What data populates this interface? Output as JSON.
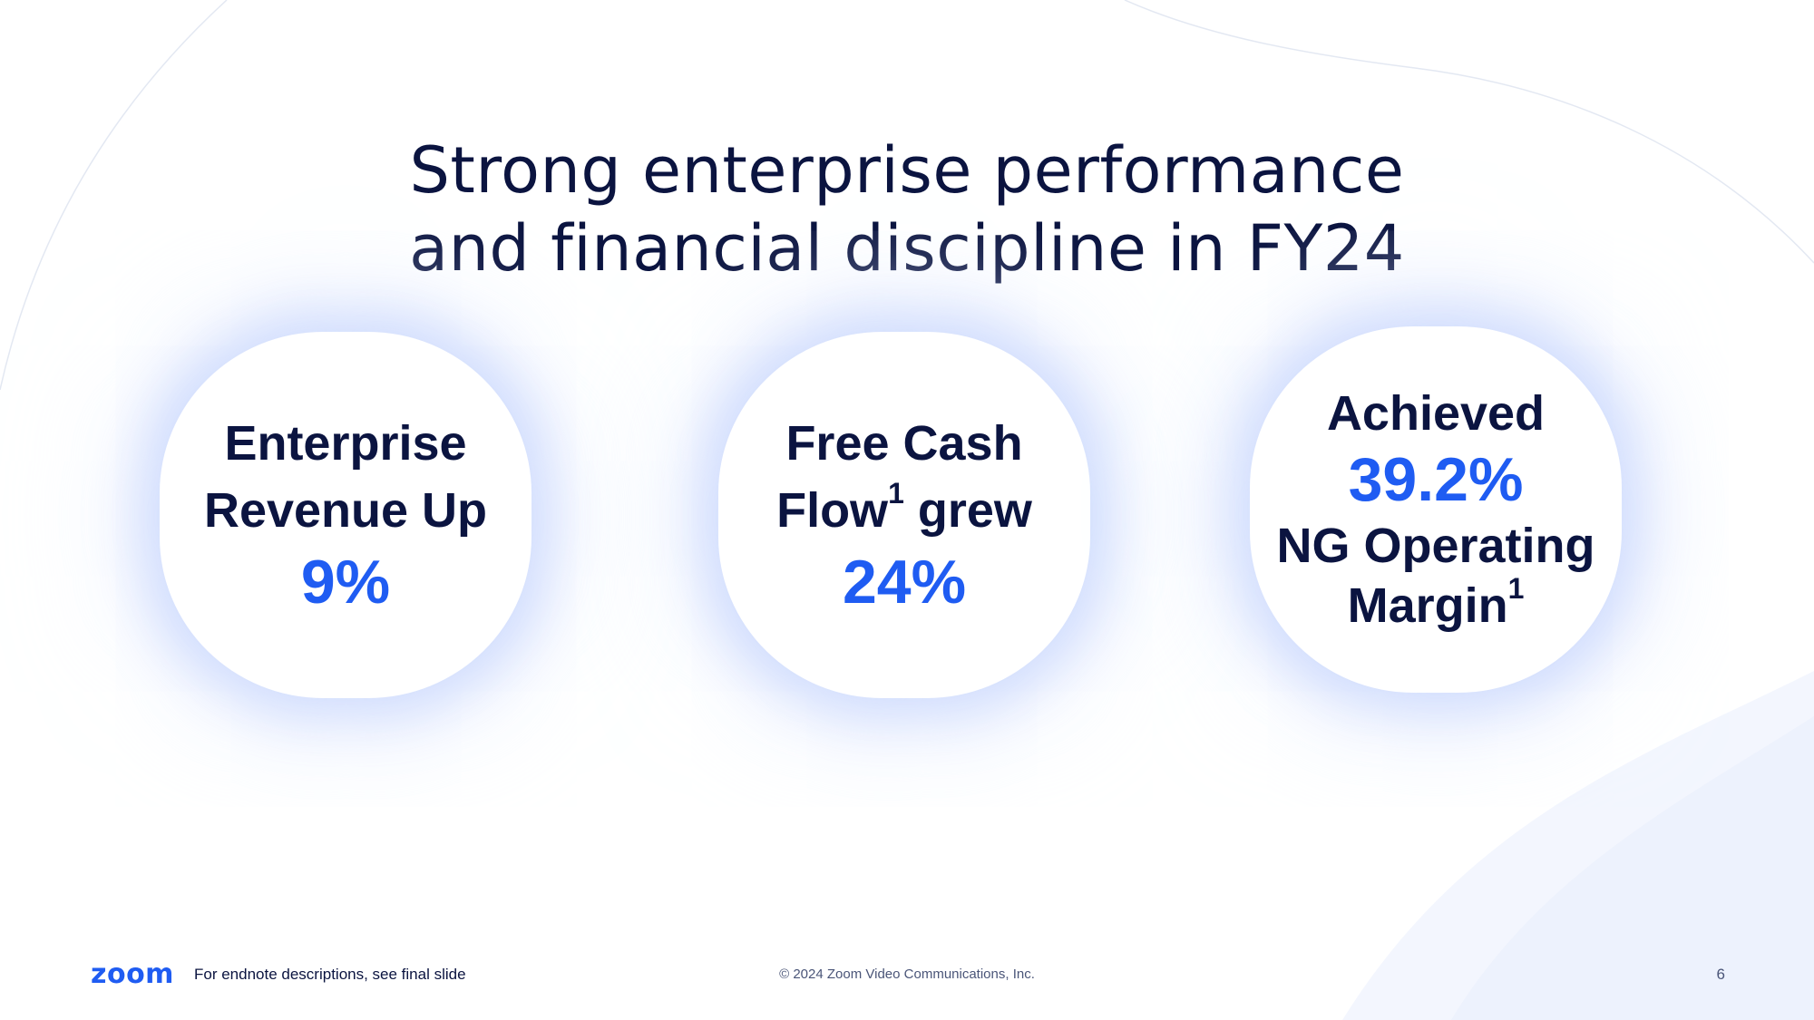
{
  "slide": {
    "title_line1": "Strong enterprise performance",
    "title_line2": "and financial discipline in FY24"
  },
  "cards": [
    {
      "line1": "Enterprise",
      "line2": "Revenue Up",
      "value": "9%"
    },
    {
      "line1": "Free Cash",
      "line2_word": "Flow",
      "line2_footnote": "1",
      "line2_rest": " grew",
      "value": "24%"
    },
    {
      "line1": "Achieved",
      "value": "39.2%",
      "line2": "NG Operating",
      "line3_word": "Margin",
      "line3_footnote": "1"
    }
  ],
  "footer": {
    "logo": "zoom",
    "endnote": "For endnote descriptions, see final slide",
    "copyright": "© 2024 Zoom Video Communications, Inc.",
    "page_number": "6"
  },
  "colors": {
    "navy": "#0b1440",
    "accent_blue": "#1f5cf2",
    "glow": "#bed0fc"
  }
}
